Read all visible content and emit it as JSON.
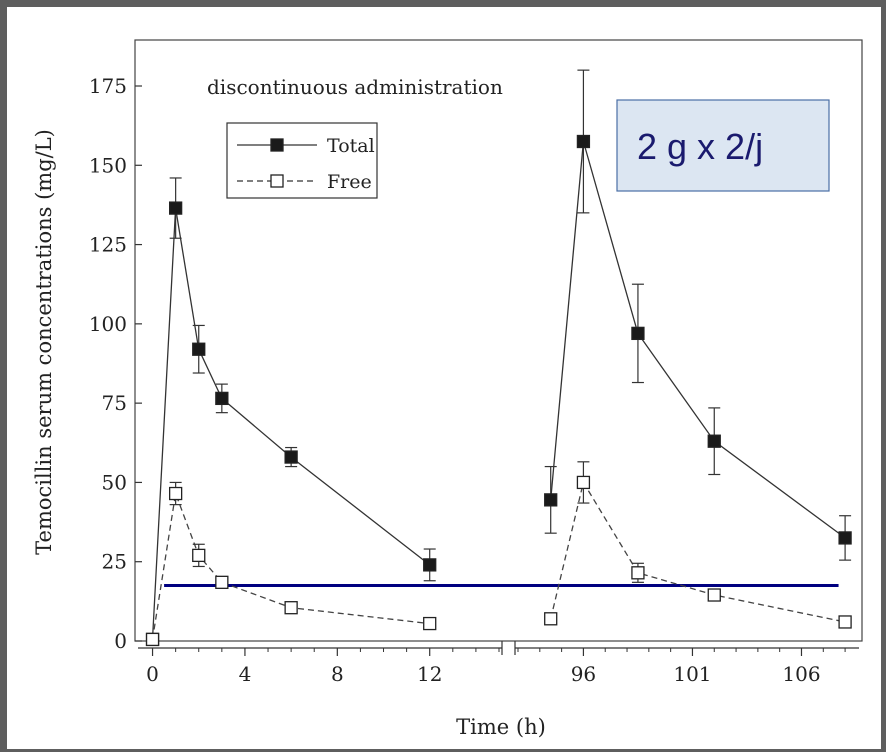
{
  "chart_data": {
    "type": "line",
    "ylabel": "Temocillin serum concentrations (mg/L)",
    "xlabel": "Time (h)",
    "annotation": "discontinuous administration",
    "dose_label": "2 g x 2/j",
    "ylim": [
      0,
      180
    ],
    "yticks": [
      0,
      25,
      50,
      75,
      100,
      125,
      150,
      175
    ],
    "x_segments": [
      {
        "range": [
          -0.5,
          15
        ],
        "ticks": [
          0,
          4,
          8,
          12
        ]
      },
      {
        "range": [
          93,
          108.5
        ],
        "ticks": [
          96,
          101,
          106
        ]
      }
    ],
    "threshold": {
      "value": 17.5,
      "x_from": 0.5,
      "x_to": 107.7,
      "color": "#000080"
    },
    "series": [
      {
        "name": "Total",
        "marker": "filled-square",
        "line": "solid",
        "segments": [
          [
            {
              "x": 0,
              "y": 0.5
            },
            {
              "x": 1,
              "y": 136.5,
              "err": 9.5
            },
            {
              "x": 2,
              "y": 92,
              "err": 7.5
            },
            {
              "x": 3,
              "y": 76.5,
              "err": 4.5
            },
            {
              "x": 6,
              "y": 58,
              "err": 3
            },
            {
              "x": 12,
              "y": 24,
              "err": 5
            }
          ],
          [
            {
              "x": 94.5,
              "y": 44.5,
              "err": 10.5
            },
            {
              "x": 96,
              "y": 157.5,
              "err": 22.5
            },
            {
              "x": 98.5,
              "y": 97,
              "err": 15.5
            },
            {
              "x": 102,
              "y": 63,
              "err": 10.5
            },
            {
              "x": 108,
              "y": 32.5,
              "err": 7
            }
          ]
        ]
      },
      {
        "name": "Free",
        "marker": "open-square",
        "line": "dashed",
        "segments": [
          [
            {
              "x": 0,
              "y": 0.5
            },
            {
              "x": 1,
              "y": 46.5,
              "err": 3.5
            },
            {
              "x": 2,
              "y": 27,
              "err": 3.5
            },
            {
              "x": 3,
              "y": 18.5,
              "err": 1.5
            },
            {
              "x": 6,
              "y": 10.5,
              "err": 1
            },
            {
              "x": 12,
              "y": 5.5,
              "err": 1
            }
          ],
          [
            {
              "x": 94.5,
              "y": 7
            },
            {
              "x": 96,
              "y": 50,
              "err": 6.5
            },
            {
              "x": 98.5,
              "y": 21.5,
              "err": 3
            },
            {
              "x": 102,
              "y": 14.5,
              "err": 1.5
            },
            {
              "x": 108,
              "y": 6,
              "err": 1
            }
          ]
        ]
      }
    ]
  }
}
